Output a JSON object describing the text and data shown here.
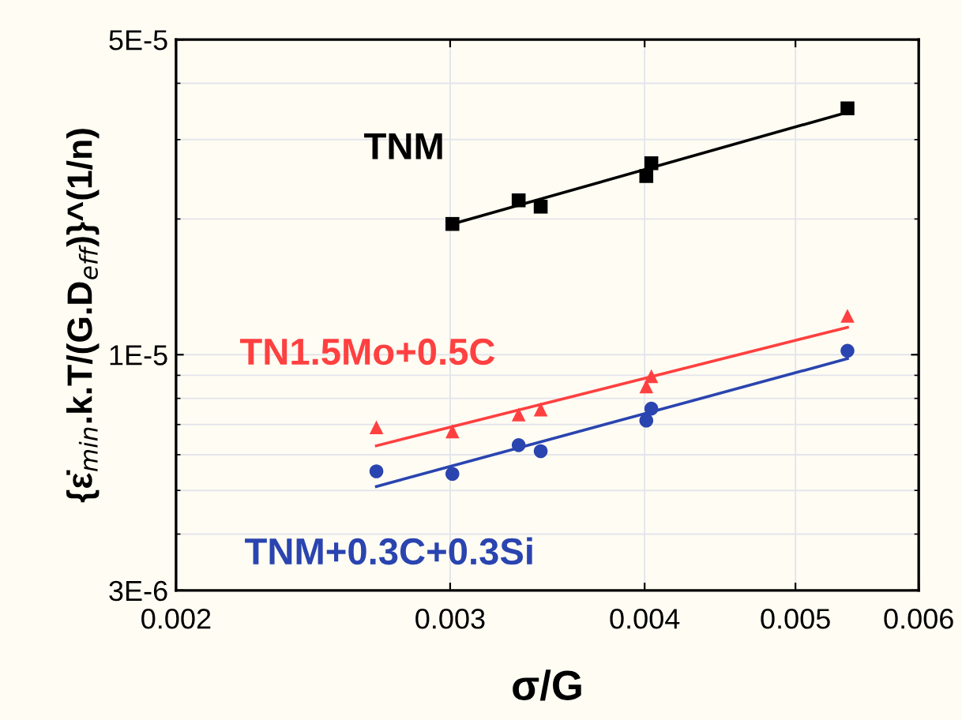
{
  "chart_data": {
    "type": "scatter",
    "xlabel": "σ/G",
    "ylabel": "{ε̇$_{min}$.k.T/(G.D$_{eff}$)}^(1/n)",
    "log": "xy",
    "grid": true,
    "legend": false,
    "xlim": [
      0.002,
      0.006
    ],
    "xticks": [
      0.002,
      0.003,
      0.004,
      0.005,
      0.006
    ],
    "ylim": [
      3e-06,
      5e-05
    ],
    "yticks": [
      {
        "value": 3e-06,
        "label": "3E-6"
      },
      {
        "value": 1e-05,
        "label": "1E-5"
      },
      {
        "value": 5e-05,
        "label": "5E-5"
      }
    ],
    "series": [
      {
        "name": "TNM",
        "color": "#000000",
        "marker": "square",
        "x": [
          0.00301,
          0.00332,
          0.00343,
          0.00401,
          0.00404,
          0.0054
        ],
        "values": [
          1.95e-05,
          2.2e-05,
          2.13e-05,
          2.49e-05,
          2.66e-05,
          3.52e-05
        ]
      },
      {
        "name": "TN1.5Mo+0.5C",
        "color": "#ff4040",
        "marker": "triangle",
        "x": [
          0.00269,
          0.00301,
          0.00332,
          0.00343,
          0.00401,
          0.00404,
          0.0054
        ],
        "values": [
          6.9e-06,
          6.76e-06,
          7.37e-06,
          7.56e-06,
          8.5e-06,
          8.96e-06,
          1.22e-05
        ]
      },
      {
        "name": "TNM+0.3C+0.3Si",
        "color": "#2a44b0",
        "marker": "circle",
        "x": [
          0.00269,
          0.00301,
          0.00332,
          0.00343,
          0.00401,
          0.00404,
          0.0054
        ],
        "values": [
          5.51e-06,
          5.44e-06,
          6.3e-06,
          6.11e-06,
          7.14e-06,
          7.59e-06,
          1.02e-05
        ]
      },
      {
        "type": "line",
        "color": "#000000",
        "marker": "none",
        "x": [
          0.00301,
          0.0054
        ],
        "values": [
          1.95e-05,
          3.45e-05
        ]
      },
      {
        "type": "line",
        "color": "#ff4040",
        "marker": "none",
        "x": [
          0.00269,
          0.0054
        ],
        "values": [
          6.28e-06,
          1.15e-05
        ]
      },
      {
        "type": "line",
        "color": "#2a44b0",
        "marker": "none",
        "x": [
          0.00269,
          0.0054
        ],
        "values": [
          5.1e-06,
          9.8e-06
        ]
      }
    ]
  }
}
